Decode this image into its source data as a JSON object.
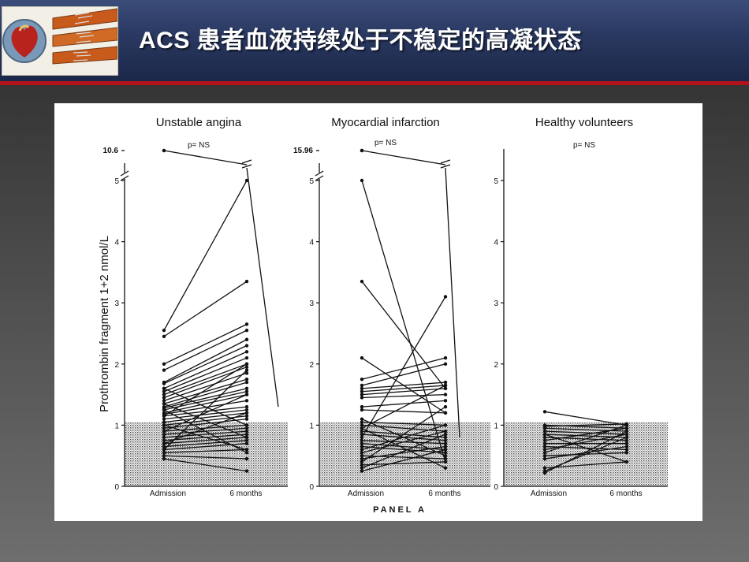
{
  "title": "ACS 患者血液持续处于不稳定的高凝状态",
  "logo": {
    "name": "heart-stent-logo"
  },
  "chart_data": {
    "type": "line",
    "ylabel": "Prothrombin fragment 1+2 nmol/L",
    "caption": "PANEL A",
    "categories": [
      "Admission",
      "6 months"
    ],
    "ylim": [
      0,
      5
    ],
    "yticks": [
      "0",
      "1",
      "2",
      "3",
      "4",
      "5"
    ],
    "shaded_reference_band": [
      0,
      1.05
    ],
    "panels": [
      {
        "title": "Unstable angina",
        "annotation": "p= NS",
        "outlier_label": "10.6",
        "outlier": [
          10.6,
          5.2
        ],
        "pairs": [
          [
            2.55,
            5.0
          ],
          [
            2.45,
            3.35
          ],
          [
            2.0,
            2.65
          ],
          [
            1.9,
            2.55
          ],
          [
            1.7,
            2.4
          ],
          [
            1.68,
            2.3
          ],
          [
            1.6,
            2.2
          ],
          [
            1.55,
            2.1
          ],
          [
            1.5,
            2.0
          ],
          [
            1.45,
            1.95
          ],
          [
            1.4,
            1.85
          ],
          [
            1.35,
            1.75
          ],
          [
            1.3,
            1.7
          ],
          [
            1.28,
            1.6
          ],
          [
            1.25,
            1.55
          ],
          [
            1.2,
            1.5
          ],
          [
            1.18,
            1.4
          ],
          [
            1.15,
            1.3
          ],
          [
            1.1,
            1.25
          ],
          [
            1.05,
            1.2
          ],
          [
            1.0,
            1.15
          ],
          [
            0.95,
            1.1
          ],
          [
            0.9,
            1.0
          ],
          [
            0.85,
            0.95
          ],
          [
            0.8,
            0.9
          ],
          [
            0.75,
            0.85
          ],
          [
            0.7,
            0.8
          ],
          [
            0.65,
            0.75
          ],
          [
            0.6,
            0.7
          ],
          [
            0.55,
            0.6
          ],
          [
            0.5,
            0.45
          ],
          [
            0.45,
            0.25
          ],
          [
            1.15,
            2.0
          ],
          [
            0.9,
            1.5
          ],
          [
            1.25,
            0.55
          ],
          [
            1.35,
            0.8
          ],
          [
            0.7,
            1.2
          ],
          [
            1.0,
            0.6
          ],
          [
            1.6,
            1.0
          ],
          [
            0.6,
            1.9
          ]
        ]
      },
      {
        "title": "Myocardial infarction",
        "annotation": "p= NS",
        "outlier_label": "15.96",
        "outlier": [
          15.96,
          5.2
        ],
        "pairs": [
          [
            5.0,
            0.4
          ],
          [
            3.35,
            1.6
          ],
          [
            2.1,
            1.2
          ],
          [
            1.75,
            2.1
          ],
          [
            1.65,
            2.0
          ],
          [
            1.6,
            1.7
          ],
          [
            1.55,
            1.65
          ],
          [
            1.5,
            1.6
          ],
          [
            1.45,
            1.5
          ],
          [
            1.3,
            1.4
          ],
          [
            1.25,
            1.2
          ],
          [
            1.05,
            1.0
          ],
          [
            1.0,
            0.9
          ],
          [
            0.95,
            1.65
          ],
          [
            0.9,
            0.8
          ],
          [
            0.85,
            0.75
          ],
          [
            0.8,
            3.1
          ],
          [
            0.75,
            0.7
          ],
          [
            0.7,
            0.6
          ],
          [
            0.65,
            0.55
          ],
          [
            0.6,
            1.0
          ],
          [
            0.55,
            0.9
          ],
          [
            0.5,
            0.45
          ],
          [
            0.45,
            0.65
          ],
          [
            0.35,
            0.4
          ],
          [
            0.3,
            0.85
          ],
          [
            0.25,
            0.6
          ],
          [
            1.1,
            0.5
          ],
          [
            0.4,
            1.3
          ],
          [
            0.95,
            0.3
          ]
        ]
      },
      {
        "title": "Healthy volunteers",
        "annotation": "p= NS",
        "pairs": [
          [
            1.22,
            1.0
          ],
          [
            1.0,
            0.95
          ],
          [
            0.98,
            1.02
          ],
          [
            0.95,
            0.9
          ],
          [
            0.9,
            0.85
          ],
          [
            0.85,
            0.8
          ],
          [
            0.8,
            0.75
          ],
          [
            0.75,
            0.95
          ],
          [
            0.7,
            0.7
          ],
          [
            0.65,
            0.6
          ],
          [
            0.6,
            0.85
          ],
          [
            0.5,
            0.55
          ],
          [
            0.45,
            0.65
          ],
          [
            0.3,
            0.4
          ],
          [
            0.25,
            0.8
          ],
          [
            0.22,
            0.9
          ],
          [
            0.85,
            0.4
          ],
          [
            0.55,
            1.0
          ]
        ]
      }
    ]
  }
}
